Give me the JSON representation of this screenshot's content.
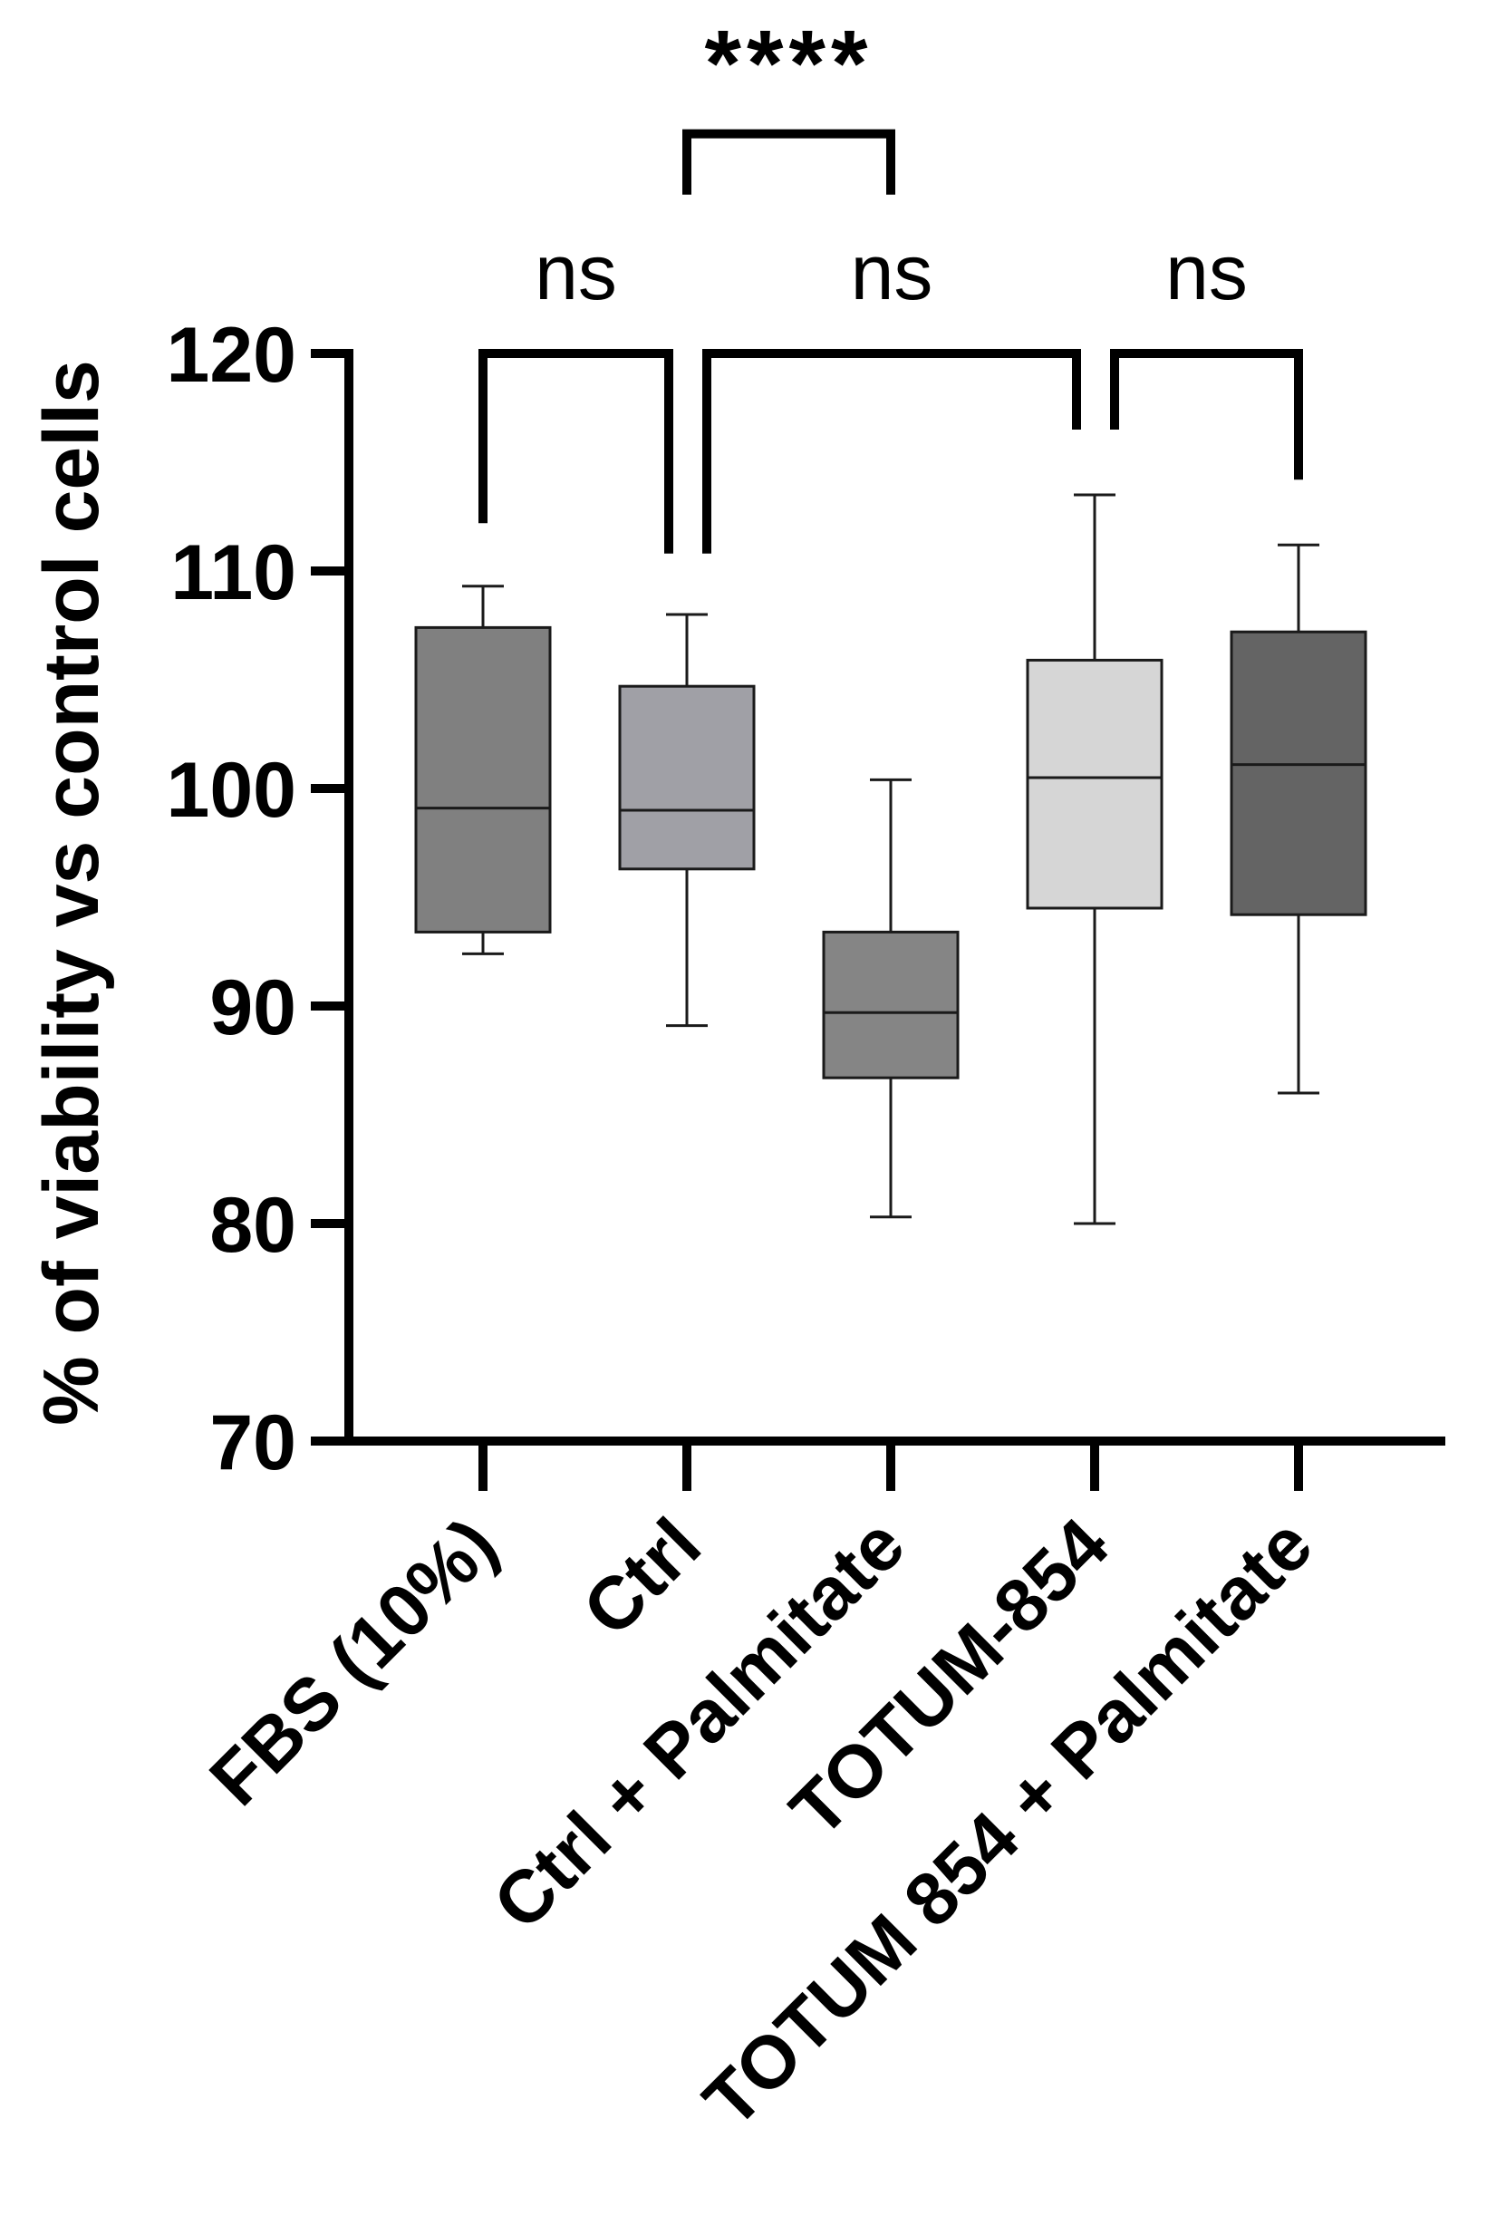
{
  "chart_data": {
    "type": "box",
    "title": "",
    "xlabel": "",
    "ylabel": "% of viability vs control cells",
    "ylim": [
      70,
      120
    ],
    "yticks": [
      70,
      80,
      90,
      100,
      110,
      120
    ],
    "categories": [
      "FBS (10%)",
      "Ctrl",
      "Ctrl + Palmitate",
      "TOTUM-854",
      "TOTUM 854 + Palmitate"
    ],
    "boxes": [
      {
        "name": "FBS (10%)",
        "min": 92.4,
        "q1": 93.4,
        "median": 99.1,
        "q3": 107.4,
        "max": 109.3,
        "color": "#808080"
      },
      {
        "name": "Ctrl",
        "min": 89.1,
        "q1": 96.3,
        "median": 99.0,
        "q3": 104.7,
        "max": 108.0,
        "color": "#a0a0a6"
      },
      {
        "name": "Ctrl + Palmitate",
        "min": 80.3,
        "q1": 86.7,
        "median": 89.7,
        "q3": 93.4,
        "max": 100.4,
        "color": "#858585"
      },
      {
        "name": "TOTUM-854",
        "min": 80.0,
        "q1": 94.5,
        "median": 100.5,
        "q3": 105.9,
        "max": 113.5,
        "color": "#d6d6d6"
      },
      {
        "name": "TOTUM 854 + Palmitate",
        "min": 86.0,
        "q1": 94.2,
        "median": 101.1,
        "q3": 107.2,
        "max": 111.2,
        "color": "#646464"
      }
    ],
    "comparisons": [
      {
        "from": 0,
        "to": 1,
        "label": "ns",
        "bracket_y": 120,
        "left_drop": 112.2,
        "right_drop": 110.8
      },
      {
        "from": 1,
        "to": 3,
        "label": "ns",
        "bracket_y": 120,
        "left_drop": 110.8,
        "right_drop": 116.5
      },
      {
        "from": 3,
        "to": 4,
        "label": "ns",
        "bracket_y": 120,
        "left_drop": 116.5,
        "right_drop": 114.2
      },
      {
        "from": 1,
        "to": 2,
        "label": "****",
        "bracket_y": 130.1,
        "left_drop": 127.3,
        "right_drop": 127.3
      }
    ]
  }
}
